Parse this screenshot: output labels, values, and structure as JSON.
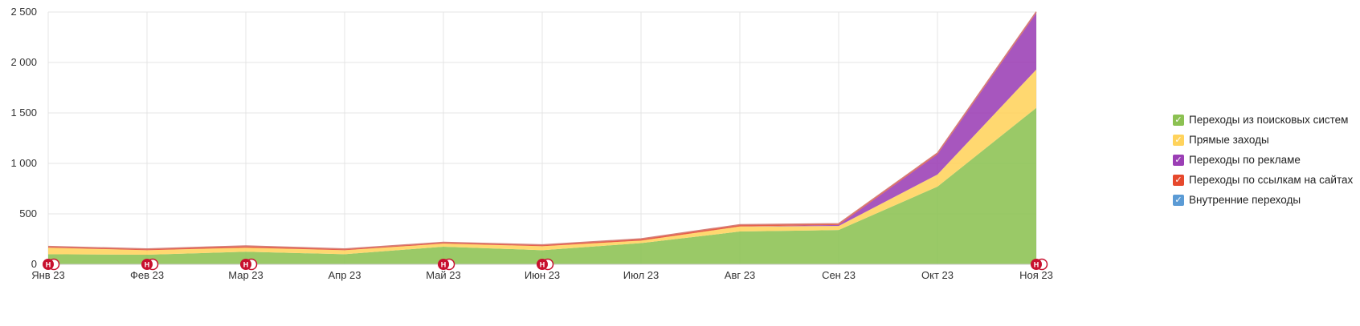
{
  "chart_data": {
    "type": "area",
    "stacked": true,
    "categories": [
      "Янв 23",
      "Фев 23",
      "Мар 23",
      "Апр 23",
      "Май 23",
      "Июн 23",
      "Июл 23",
      "Авг 23",
      "Сен 23",
      "Окт 23",
      "Ноя 23"
    ],
    "ylim": [
      0,
      2500
    ],
    "yticks": [
      0,
      500,
      1000,
      1500,
      2000,
      2500
    ],
    "ytick_labels": [
      "0",
      "500",
      "1 000",
      "1 500",
      "2 000",
      "2 500"
    ],
    "grid": true,
    "legend_position": "right",
    "series": [
      {
        "name": "Переходы из поисковых систем",
        "color": "#8cc152",
        "values": [
          100,
          95,
          125,
          100,
          175,
          140,
          210,
          325,
          340,
          770,
          1550
        ]
      },
      {
        "name": "Прямые заходы",
        "color": "#ffd35c",
        "values": [
          65,
          45,
          40,
          40,
          30,
          40,
          25,
          50,
          40,
          120,
          380
        ]
      },
      {
        "name": "Переходы по рекламе",
        "color": "#9b3fb5",
        "values": [
          0,
          0,
          0,
          0,
          0,
          0,
          0,
          0,
          10,
          200,
          560
        ]
      },
      {
        "name": "Переходы по ссылкам на сайтах",
        "color": "#e6492d",
        "values": [
          10,
          10,
          15,
          10,
          10,
          10,
          15,
          15,
          10,
          10,
          10
        ]
      },
      {
        "name": "Внутренние переходы",
        "color": "#5b9bd5",
        "values": [
          3,
          3,
          3,
          3,
          3,
          3,
          3,
          3,
          3,
          3,
          3
        ]
      }
    ],
    "annotation_label": "Н",
    "annotation_color": "#c8102e",
    "annotation_categories": [
      "Янв 23",
      "Фев 23",
      "Мар 23",
      "Май 23",
      "Июн 23",
      "Ноя 23"
    ]
  }
}
